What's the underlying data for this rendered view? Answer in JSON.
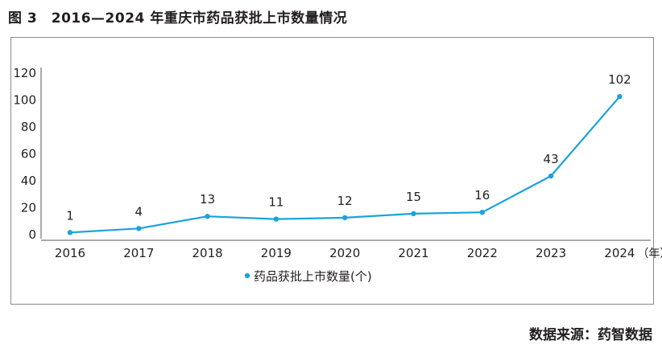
{
  "figure": {
    "title": "图 3　2016—2024 年重庆市药品获批上市数量情况",
    "source": "数据来源：药智数据"
  },
  "colors": {
    "line": "#1aa3dc",
    "text": "#231f20",
    "axis": "#555555",
    "frame": "#8a8a8a"
  },
  "chart_data": {
    "type": "line",
    "title": "图 3　2016—2024 年重庆市药品获批上市数量情况",
    "x_unit_label": "（年）",
    "categories": [
      "2016",
      "2017",
      "2018",
      "2019",
      "2020",
      "2021",
      "2022",
      "2023",
      "2024"
    ],
    "series": [
      {
        "name": "药品获批上市数量(个)",
        "values": [
          1,
          4,
          13,
          11,
          12,
          15,
          16,
          43,
          102
        ]
      }
    ],
    "ylim": [
      0,
      120
    ],
    "yticks": [
      0,
      20,
      40,
      60,
      80,
      100,
      120
    ],
    "grid": false,
    "legend_position": "bottom-center",
    "data_labels": true,
    "markers": true
  }
}
